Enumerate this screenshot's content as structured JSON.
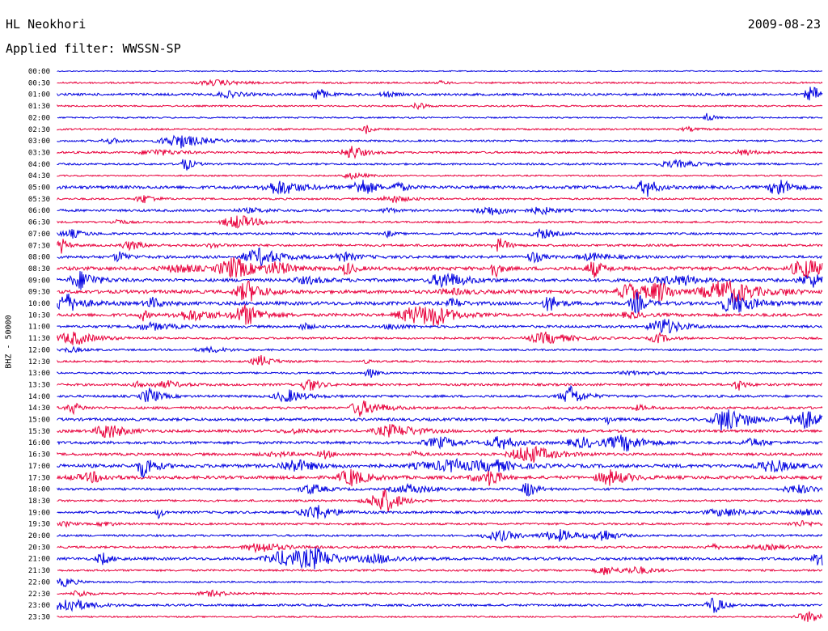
{
  "header": {
    "station": "HL Neokhori",
    "date": "2009-08-23",
    "filter_label": "Applied filter: WWSSN-SP"
  },
  "chart_data": {
    "type": "line",
    "ylabel": "BHZ - 50000",
    "series_colors": [
      "#0000e0",
      "#e8003c"
    ],
    "grid": false,
    "rows": [
      {
        "label": "00:00",
        "color": "#0000e0",
        "activity": 0.05
      },
      {
        "label": "00:30",
        "color": "#e8003c",
        "activity": 0.25
      },
      {
        "label": "01:00",
        "color": "#0000e0",
        "activity": 0.45
      },
      {
        "label": "01:30",
        "color": "#e8003c",
        "activity": 0.2
      },
      {
        "label": "02:00",
        "color": "#0000e0",
        "activity": 0.15
      },
      {
        "label": "02:30",
        "color": "#e8003c",
        "activity": 0.25
      },
      {
        "label": "03:00",
        "color": "#0000e0",
        "activity": 0.3
      },
      {
        "label": "03:30",
        "color": "#e8003c",
        "activity": 0.35
      },
      {
        "label": "04:00",
        "color": "#0000e0",
        "activity": 0.3
      },
      {
        "label": "04:30",
        "color": "#e8003c",
        "activity": 0.15
      },
      {
        "label": "05:00",
        "color": "#0000e0",
        "activity": 0.7
      },
      {
        "label": "05:30",
        "color": "#e8003c",
        "activity": 0.3
      },
      {
        "label": "06:00",
        "color": "#0000e0",
        "activity": 0.45
      },
      {
        "label": "06:30",
        "color": "#e8003c",
        "activity": 0.3
      },
      {
        "label": "07:00",
        "color": "#0000e0",
        "activity": 0.4
      },
      {
        "label": "07:30",
        "color": "#e8003c",
        "activity": 0.45
      },
      {
        "label": "08:00",
        "color": "#0000e0",
        "activity": 0.6
      },
      {
        "label": "08:30",
        "color": "#e8003c",
        "activity": 0.85
      },
      {
        "label": "09:00",
        "color": "#0000e0",
        "activity": 0.75
      },
      {
        "label": "09:30",
        "color": "#e8003c",
        "activity": 0.8
      },
      {
        "label": "10:00",
        "color": "#0000e0",
        "activity": 0.85
      },
      {
        "label": "10:30",
        "color": "#e8003c",
        "activity": 0.7
      },
      {
        "label": "11:00",
        "color": "#0000e0",
        "activity": 0.5
      },
      {
        "label": "11:30",
        "color": "#e8003c",
        "activity": 0.35
      },
      {
        "label": "12:00",
        "color": "#0000e0",
        "activity": 0.3
      },
      {
        "label": "12:30",
        "color": "#e8003c",
        "activity": 0.3
      },
      {
        "label": "13:00",
        "color": "#0000e0",
        "activity": 0.3
      },
      {
        "label": "13:30",
        "color": "#e8003c",
        "activity": 0.45
      },
      {
        "label": "14:00",
        "color": "#0000e0",
        "activity": 0.45
      },
      {
        "label": "14:30",
        "color": "#e8003c",
        "activity": 0.5
      },
      {
        "label": "15:00",
        "color": "#0000e0",
        "activity": 0.6
      },
      {
        "label": "15:30",
        "color": "#e8003c",
        "activity": 0.55
      },
      {
        "label": "16:00",
        "color": "#0000e0",
        "activity": 0.6
      },
      {
        "label": "16:30",
        "color": "#e8003c",
        "activity": 0.55
      },
      {
        "label": "17:00",
        "color": "#0000e0",
        "activity": 0.85
      },
      {
        "label": "17:30",
        "color": "#e8003c",
        "activity": 0.75
      },
      {
        "label": "18:00",
        "color": "#0000e0",
        "activity": 0.45
      },
      {
        "label": "18:30",
        "color": "#e8003c",
        "activity": 0.35
      },
      {
        "label": "19:00",
        "color": "#0000e0",
        "activity": 0.45
      },
      {
        "label": "19:30",
        "color": "#e8003c",
        "activity": 0.35
      },
      {
        "label": "20:00",
        "color": "#0000e0",
        "activity": 0.35
      },
      {
        "label": "20:30",
        "color": "#e8003c",
        "activity": 0.4
      },
      {
        "label": "21:00",
        "color": "#0000e0",
        "activity": 0.6
      },
      {
        "label": "21:30",
        "color": "#e8003c",
        "activity": 0.3
      },
      {
        "label": "22:00",
        "color": "#0000e0",
        "activity": 0.2
      },
      {
        "label": "22:30",
        "color": "#e8003c",
        "activity": 0.25
      },
      {
        "label": "23:00",
        "color": "#0000e0",
        "activity": 0.4
      },
      {
        "label": "23:30",
        "color": "#e8003c",
        "activity": 0.15
      }
    ]
  }
}
